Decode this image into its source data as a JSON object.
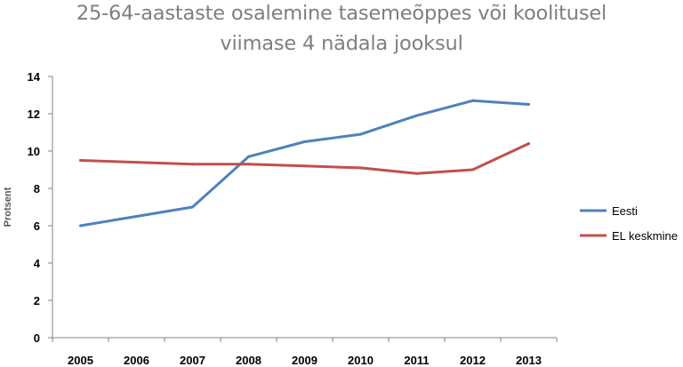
{
  "title_line1": "25-64-aastaste osalemine tasemeõppes või koolitusel",
  "title_line2": "viimase 4 nädala jooksul",
  "chart_data": {
    "type": "line",
    "title": "25-64-aastaste osalemine tasemeõppes või koolitusel viimase 4 nädala jooksul",
    "xlabel": "",
    "ylabel": "Protsent",
    "categories": [
      "2005",
      "2006",
      "2007",
      "2008",
      "2009",
      "2010",
      "2011",
      "2012",
      "2013"
    ],
    "ylim": [
      0,
      14
    ],
    "yticks": [
      "0",
      "2",
      "4",
      "6",
      "8",
      "10",
      "12",
      "14"
    ],
    "grid": false,
    "legend_position": "right",
    "series": [
      {
        "name": "Eesti",
        "color": "#4f81bd",
        "values": [
          6.0,
          6.5,
          7.0,
          9.7,
          10.5,
          10.9,
          11.9,
          12.7,
          12.5
        ]
      },
      {
        "name": "EL keskmine",
        "color": "#c0504d",
        "values": [
          9.5,
          9.4,
          9.3,
          9.3,
          9.2,
          9.1,
          8.8,
          9.0,
          10.4
        ]
      }
    ]
  }
}
